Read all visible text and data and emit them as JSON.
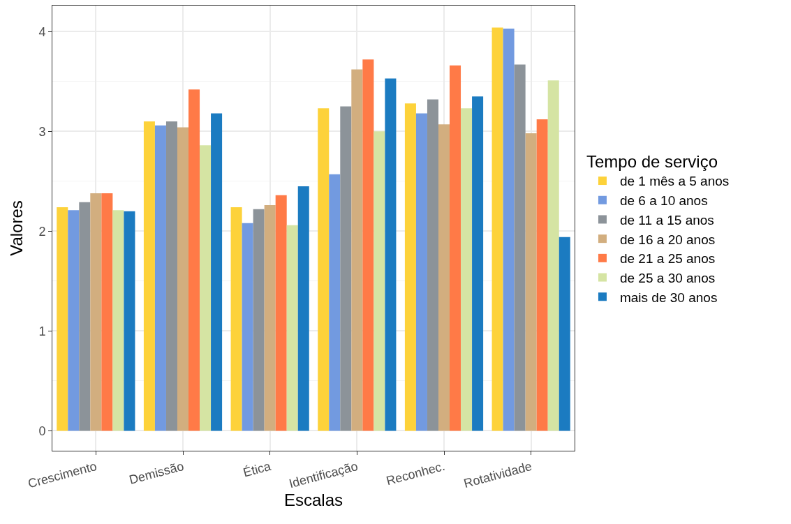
{
  "chart_data": {
    "type": "bar",
    "xlabel": "Escalas",
    "ylabel": "Valores",
    "legend_title": "Tempo de serviço",
    "categories": [
      "Crescimento",
      "Demissão",
      "Ética",
      "Identificação",
      "Reconhec.",
      "Rotatividade"
    ],
    "series": [
      {
        "name": "de 1 mês a 5 anos",
        "color": "#fdd23a",
        "values": [
          2.24,
          3.1,
          2.24,
          3.23,
          3.28,
          4.04
        ]
      },
      {
        "name": "de 6 a 10 anos",
        "color": "#729ae0",
        "values": [
          2.21,
          3.06,
          2.08,
          2.57,
          3.18,
          4.03
        ]
      },
      {
        "name": "de 11 a 15 anos",
        "color": "#8c9399",
        "values": [
          2.29,
          3.1,
          2.22,
          3.25,
          3.32,
          3.67
        ]
      },
      {
        "name": "de 16 a 20 anos",
        "color": "#d2ae7f",
        "values": [
          2.38,
          3.04,
          2.26,
          3.62,
          3.07,
          2.98
        ]
      },
      {
        "name": "de 21 a 25 anos",
        "color": "#ff7a47",
        "values": [
          2.38,
          3.42,
          2.36,
          3.72,
          3.66,
          3.12
        ]
      },
      {
        "name": "de 25 a 30 anos",
        "color": "#d5e4a3",
        "values": [
          2.21,
          2.86,
          2.06,
          3.0,
          3.23,
          3.51
        ]
      },
      {
        "name": "mais de 30 anos",
        "color": "#1b7bc1",
        "values": [
          2.2,
          3.18,
          2.45,
          3.53,
          3.35,
          1.94
        ]
      }
    ],
    "ylim": [
      -0.2,
      4.26
    ],
    "yticks": [
      0,
      1,
      2,
      3,
      4
    ],
    "grid": true,
    "legend": "right"
  }
}
